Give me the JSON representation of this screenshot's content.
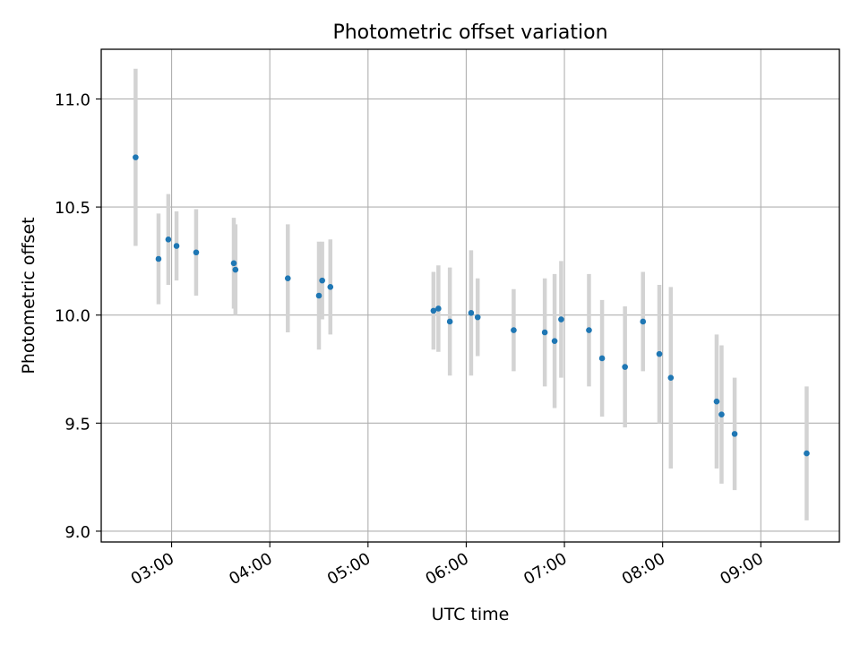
{
  "chart_data": {
    "type": "scatter",
    "title": "Photometric offset variation",
    "xlabel": "UTC time",
    "ylabel": "Photometric offset",
    "x_ticks": [
      "03:00",
      "04:00",
      "05:00",
      "06:00",
      "07:00",
      "08:00",
      "09:00"
    ],
    "x_tick_hours": [
      3,
      4,
      5,
      6,
      7,
      8,
      9
    ],
    "xlim": [
      "02:17",
      "09:48"
    ],
    "y_ticks": [
      "9.0",
      "9.5",
      "10.0",
      "10.5",
      "11.0"
    ],
    "ylim": [
      8.95,
      11.23
    ],
    "grid": true,
    "points": [
      {
        "t": "02:38",
        "y": 10.73,
        "err": 0.41
      },
      {
        "t": "02:52",
        "y": 10.26,
        "err": 0.21
      },
      {
        "t": "02:58",
        "y": 10.35,
        "err": 0.21
      },
      {
        "t": "03:03",
        "y": 10.32,
        "err": 0.16
      },
      {
        "t": "03:15",
        "y": 10.29,
        "err": 0.2
      },
      {
        "t": "03:38",
        "y": 10.24,
        "err": 0.21
      },
      {
        "t": "03:39",
        "y": 10.21,
        "err": 0.21
      },
      {
        "t": "04:11",
        "y": 10.17,
        "err": 0.25
      },
      {
        "t": "04:30",
        "y": 10.09,
        "err": 0.25
      },
      {
        "t": "04:32",
        "y": 10.16,
        "err": 0.18
      },
      {
        "t": "04:37",
        "y": 10.13,
        "err": 0.22
      },
      {
        "t": "05:40",
        "y": 10.02,
        "err": 0.18
      },
      {
        "t": "05:43",
        "y": 10.03,
        "err": 0.2
      },
      {
        "t": "05:50",
        "y": 9.97,
        "err": 0.25
      },
      {
        "t": "06:03",
        "y": 10.01,
        "err": 0.29
      },
      {
        "t": "06:07",
        "y": 9.99,
        "err": 0.18
      },
      {
        "t": "06:29",
        "y": 9.93,
        "err": 0.19
      },
      {
        "t": "06:48",
        "y": 9.92,
        "err": 0.25
      },
      {
        "t": "06:54",
        "y": 9.88,
        "err": 0.31
      },
      {
        "t": "06:58",
        "y": 9.98,
        "err": 0.27
      },
      {
        "t": "07:15",
        "y": 9.93,
        "err": 0.26
      },
      {
        "t": "07:23",
        "y": 9.8,
        "err": 0.27
      },
      {
        "t": "07:37",
        "y": 9.76,
        "err": 0.28
      },
      {
        "t": "07:48",
        "y": 9.97,
        "err": 0.23
      },
      {
        "t": "07:58",
        "y": 9.82,
        "err": 0.32
      },
      {
        "t": "08:05",
        "y": 9.71,
        "err": 0.42
      },
      {
        "t": "08:33",
        "y": 9.6,
        "err": 0.31
      },
      {
        "t": "08:36",
        "y": 9.54,
        "err": 0.32
      },
      {
        "t": "08:44",
        "y": 9.45,
        "err": 0.26
      },
      {
        "t": "09:28",
        "y": 9.36,
        "err": 0.31
      }
    ],
    "colors": {
      "marker": "#1f77b4",
      "errorbar": "#d3d3d3",
      "grid": "#b0b0b0",
      "axes": "#000000"
    }
  }
}
